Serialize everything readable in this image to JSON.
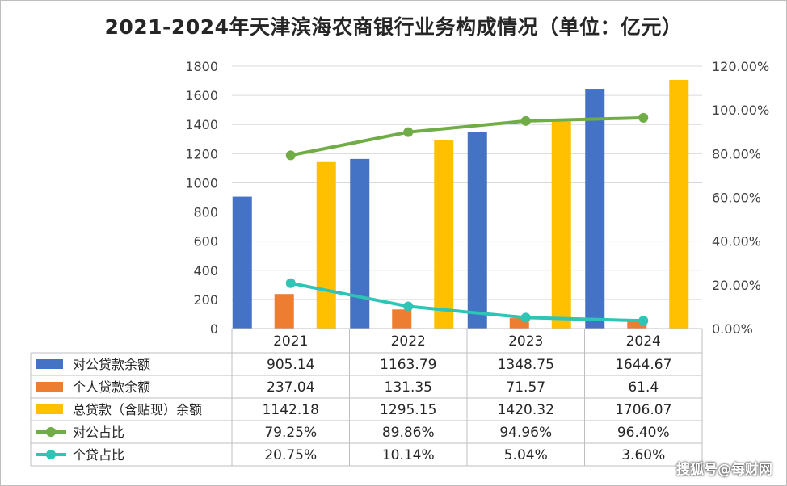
{
  "chart_data": {
    "type": "bar",
    "title": "2021-2024年天津滨海农商银行业务构成情况（单位：亿元）",
    "categories": [
      "2021",
      "2022",
      "2023",
      "2024"
    ],
    "left_axis": {
      "ylim": [
        0,
        1800
      ],
      "ticks": [
        "0",
        "200",
        "400",
        "600",
        "800",
        "1000",
        "1200",
        "1400",
        "1600",
        "1800"
      ]
    },
    "right_axis": {
      "ylim": [
        0,
        120
      ],
      "ticks": [
        "0.00%",
        "20.00%",
        "40.00%",
        "60.00%",
        "80.00%",
        "100.00%",
        "120.00%"
      ]
    },
    "series": [
      {
        "name": "对公贷款余额",
        "kind": "bar",
        "axis": "left",
        "color": "#4472C4",
        "values": [
          905.14,
          1163.79,
          1348.75,
          1644.67
        ],
        "labels": [
          "905.14",
          "1163.79",
          "1348.75",
          "1644.67"
        ]
      },
      {
        "name": "个人贷款余额",
        "kind": "bar",
        "axis": "left",
        "color": "#ED7D31",
        "values": [
          237.04,
          131.35,
          71.57,
          61.4
        ],
        "labels": [
          "237.04",
          "131.35",
          "71.57",
          "61.4"
        ]
      },
      {
        "name": "总贷款（含贴现）余额",
        "kind": "bar",
        "axis": "left",
        "color": "#FFC000",
        "values": [
          1142.18,
          1295.15,
          1420.32,
          1706.07
        ],
        "labels": [
          "1142.18",
          "1295.15",
          "1420.32",
          "1706.07"
        ]
      },
      {
        "name": "对公占比",
        "kind": "line",
        "axis": "right",
        "color": "#70AD47",
        "values": [
          79.25,
          89.86,
          94.96,
          96.4
        ],
        "labels": [
          "79.25%",
          "89.86%",
          "94.96%",
          "96.40%"
        ]
      },
      {
        "name": "个贷占比",
        "kind": "line",
        "axis": "right",
        "color": "#2EC4B6",
        "values": [
          20.75,
          10.14,
          5.04,
          3.6
        ],
        "labels": [
          "20.75%",
          "10.14%",
          "5.04%",
          "3.60%"
        ]
      }
    ],
    "grid": true,
    "legend": "data-table-left"
  },
  "source_label": "搜狐号@每财网"
}
